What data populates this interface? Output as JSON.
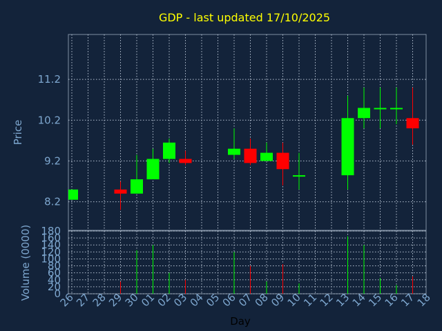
{
  "colors": {
    "background": "#13233a",
    "plot_border": "#7f8fa3",
    "grid": "#b7c3d3",
    "title": "#ffff00",
    "axis_text": "#7ea7cf",
    "up": "#00ff00",
    "down": "#ff0000"
  },
  "chart_data": [
    {
      "type": "candlestick",
      "title": "GDP - last updated 17/10/2025",
      "ylabel": "Price",
      "ylim": [
        7.5,
        12.3
      ],
      "yticks": [
        "8.2",
        "9.2",
        "10.2",
        "11.2"
      ],
      "grid": true,
      "x_ticks": [
        "26",
        "27",
        "28",
        "29",
        "30",
        "01",
        "02",
        "03",
        "04",
        "05",
        "06",
        "07",
        "08",
        "09",
        "10",
        "11",
        "12",
        "13",
        "14",
        "15",
        "16",
        "17",
        "18"
      ],
      "candles": [
        {
          "day": "26",
          "open": 8.25,
          "close": 8.5,
          "high": 8.5,
          "low": 8.25
        },
        {
          "day": "29",
          "open": 8.5,
          "close": 8.4,
          "high": 8.7,
          "low": 8.0
        },
        {
          "day": "30",
          "open": 8.4,
          "close": 8.75,
          "high": 9.35,
          "low": 8.4
        },
        {
          "day": "01",
          "open": 8.75,
          "close": 9.25,
          "high": 9.5,
          "low": 8.75
        },
        {
          "day": "02",
          "open": 9.25,
          "close": 9.65,
          "high": 9.75,
          "low": 9.15
        },
        {
          "day": "03",
          "open": 9.25,
          "close": 9.15,
          "high": 9.45,
          "low": 9.1
        },
        {
          "day": "06",
          "open": 9.35,
          "close": 9.5,
          "high": 10.0,
          "low": 9.25
        },
        {
          "day": "07",
          "open": 9.5,
          "close": 9.15,
          "high": 9.75,
          "low": 9.1
        },
        {
          "day": "08",
          "open": 9.2,
          "close": 9.4,
          "high": 9.65,
          "low": 9.2
        },
        {
          "day": "09",
          "open": 9.4,
          "close": 9.0,
          "high": 9.65,
          "low": 8.6
        },
        {
          "day": "10",
          "open": 8.85,
          "close": 8.85,
          "high": 9.4,
          "low": 8.5
        },
        {
          "day": "13",
          "open": 8.85,
          "close": 10.25,
          "high": 10.8,
          "low": 8.5
        },
        {
          "day": "14",
          "open": 10.25,
          "close": 10.5,
          "high": 11.0,
          "low": 10.0
        },
        {
          "day": "15",
          "open": 10.5,
          "close": 10.5,
          "high": 11.0,
          "low": 10.0
        },
        {
          "day": "16",
          "open": 10.5,
          "close": 10.5,
          "high": 11.0,
          "low": 10.1
        },
        {
          "day": "17",
          "open": 10.25,
          "close": 10.0,
          "high": 11.0,
          "low": 9.6
        }
      ]
    },
    {
      "type": "bar",
      "xlabel": "Day",
      "ylabel": "Volume (0000)",
      "ylim": [
        0,
        180
      ],
      "yticks": [
        "0",
        "20",
        "40",
        "60",
        "80",
        "100",
        "120",
        "140",
        "160",
        "180"
      ],
      "grid": true,
      "bars": [
        {
          "day": "29",
          "value": 35,
          "direction": "down"
        },
        {
          "day": "30",
          "value": 125,
          "direction": "up"
        },
        {
          "day": "01",
          "value": 140,
          "direction": "up"
        },
        {
          "day": "02",
          "value": 60,
          "direction": "up"
        },
        {
          "day": "03",
          "value": 40,
          "direction": "down"
        },
        {
          "day": "06",
          "value": 120,
          "direction": "up"
        },
        {
          "day": "07",
          "value": 80,
          "direction": "down"
        },
        {
          "day": "08",
          "value": 35,
          "direction": "up"
        },
        {
          "day": "09",
          "value": 85,
          "direction": "down"
        },
        {
          "day": "10",
          "value": 30,
          "direction": "up"
        },
        {
          "day": "13",
          "value": 165,
          "direction": "up"
        },
        {
          "day": "14",
          "value": 140,
          "direction": "up"
        },
        {
          "day": "15",
          "value": 45,
          "direction": "up"
        },
        {
          "day": "16",
          "value": 25,
          "direction": "up"
        },
        {
          "day": "17",
          "value": 50,
          "direction": "down"
        }
      ]
    }
  ]
}
